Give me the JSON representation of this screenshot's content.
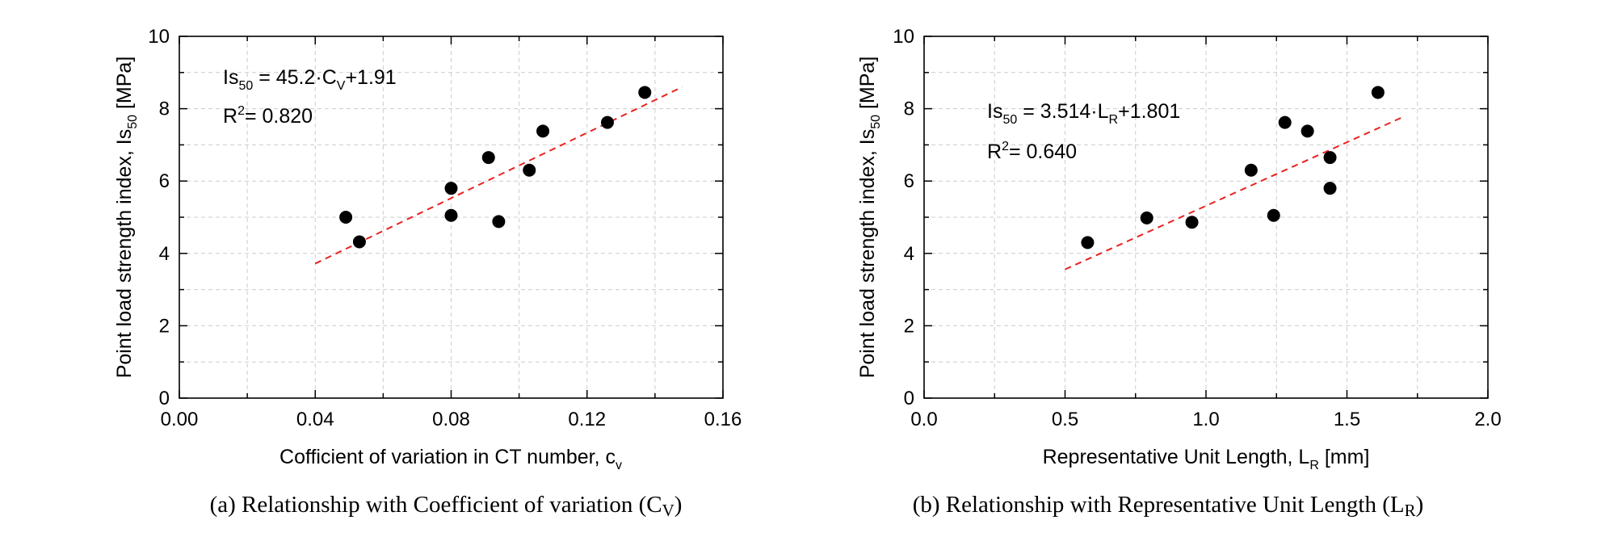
{
  "chart_data": [
    {
      "type": "scatter",
      "xlabel": "Cofficient of variation in CT number, c",
      "xlabel_sub": "v",
      "ylabel": "Point load strength index, Is",
      "ylabel_sub": "50",
      "ylabel_unit": " [MPa]",
      "xlim": [
        0.0,
        0.16
      ],
      "ylim": [
        0,
        10
      ],
      "x_ticks": [
        "0.00",
        "0.04",
        "0.08",
        "0.12",
        "0.16"
      ],
      "x_tick_values": [
        0.0,
        0.04,
        0.08,
        0.12,
        0.16
      ],
      "y_ticks": [
        "0",
        "2",
        "4",
        "6",
        "8",
        "10"
      ],
      "y_tick_values": [
        0,
        2,
        4,
        6,
        8,
        10
      ],
      "grid": true,
      "points": [
        {
          "x": 0.049,
          "y": 5.0
        },
        {
          "x": 0.053,
          "y": 4.32
        },
        {
          "x": 0.08,
          "y": 5.8
        },
        {
          "x": 0.08,
          "y": 5.05
        },
        {
          "x": 0.091,
          "y": 6.65
        },
        {
          "x": 0.094,
          "y": 4.88
        },
        {
          "x": 0.103,
          "y": 6.3
        },
        {
          "x": 0.107,
          "y": 7.38
        },
        {
          "x": 0.126,
          "y": 7.62
        },
        {
          "x": 0.137,
          "y": 8.45
        }
      ],
      "fit": {
        "slope": 45.2,
        "intercept": 1.91,
        "x_range": [
          0.04,
          0.148
        ],
        "color": "#e8231f"
      },
      "equation": {
        "lhs": "Is",
        "lhs_sub": "50",
        "mid": " = 45.2·C",
        "var_sub": "V",
        "rhs": "+1.91",
        "r2_label": "R",
        "r2_sup": "2",
        "r2_value": "= 0.820"
      },
      "caption": {
        "text": "(a) Relationship with Coefficient of variation (C",
        "sub": "V",
        "close": ")"
      }
    },
    {
      "type": "scatter",
      "xlabel": "Representative Unit Length, L",
      "xlabel_sub": "R",
      "xlabel_unit": " [mm]",
      "ylabel": "Point load strength index, Is",
      "ylabel_sub": "50",
      "ylabel_unit": " [MPa]",
      "xlim": [
        0.0,
        2.0
      ],
      "ylim": [
        0,
        10
      ],
      "x_ticks": [
        "0.0",
        "0.5",
        "1.0",
        "1.5",
        "2.0"
      ],
      "x_tick_values": [
        0.0,
        0.5,
        1.0,
        1.5,
        2.0
      ],
      "y_ticks": [
        "0",
        "2",
        "4",
        "6",
        "8",
        "10"
      ],
      "y_tick_values": [
        0,
        2,
        4,
        6,
        8,
        10
      ],
      "grid": true,
      "points": [
        {
          "x": 0.58,
          "y": 4.3
        },
        {
          "x": 0.79,
          "y": 4.98
        },
        {
          "x": 0.95,
          "y": 4.86
        },
        {
          "x": 1.16,
          "y": 6.3
        },
        {
          "x": 1.24,
          "y": 5.05
        },
        {
          "x": 1.28,
          "y": 7.62
        },
        {
          "x": 1.36,
          "y": 7.38
        },
        {
          "x": 1.44,
          "y": 6.65
        },
        {
          "x": 1.44,
          "y": 5.8
        },
        {
          "x": 1.61,
          "y": 8.45
        }
      ],
      "fit": {
        "slope": 3.514,
        "intercept": 1.801,
        "x_range": [
          0.5,
          1.7
        ],
        "color": "#e8231f"
      },
      "equation": {
        "lhs": "Is",
        "lhs_sub": "50",
        "mid": " = 3.514·L",
        "var_sub": "R",
        "rhs": "+1.801",
        "r2_label": "R",
        "r2_sup": "2",
        "r2_value": "= 0.640"
      },
      "caption": {
        "text": "(b) Relationship with Representative Unit Length (L",
        "sub": "R",
        "close": ")"
      }
    }
  ]
}
